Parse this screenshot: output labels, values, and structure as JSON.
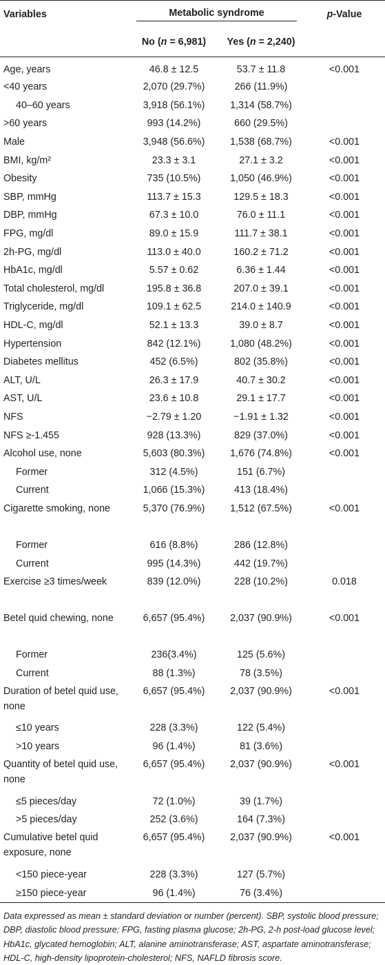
{
  "header": {
    "variables": "Variables",
    "group": "Metabolic syndrome",
    "pvalue": "p",
    "pvalue_suffix": "-Value",
    "no_label": "No (",
    "no_n": "n",
    "no_count": " = 6,981)",
    "yes_label": "Yes (",
    "yes_n": "n",
    "yes_count": " = 2,240)"
  },
  "rows": [
    {
      "label": "Age, years",
      "no": "46.8 ± 12.5",
      "yes": "53.7 ± 11.8",
      "p": "<0.001",
      "indent": false
    },
    {
      "label": "<40 years",
      "no": "2,070 (29.7%)",
      "yes": "266 (11.9%)",
      "p": "",
      "indent": false
    },
    {
      "label": "40–60 years",
      "no": "3,918 (56.1%)",
      "yes": "1,314 (58.7%)",
      "p": "",
      "indent": true
    },
    {
      "label": ">60 years",
      "no": "993 (14.2%)",
      "yes": "660 (29.5%)",
      "p": "",
      "indent": false
    },
    {
      "label": "Male",
      "no": "3,948 (56.6%)",
      "yes": "1,538 (68.7%)",
      "p": "<0.001",
      "indent": false
    },
    {
      "label": "BMI, kg/m²",
      "no": "23.3 ± 3.1",
      "yes": "27.1 ± 3.2",
      "p": "<0.001",
      "indent": false
    },
    {
      "label": "Obesity",
      "no": "735 (10.5%)",
      "yes": "1,050 (46.9%)",
      "p": "<0.001",
      "indent": false
    },
    {
      "label": "SBP, mmHg",
      "no": "113.7 ± 15.3",
      "yes": "129.5 ± 18.3",
      "p": "<0.001",
      "indent": false
    },
    {
      "label": "DBP, mmHg",
      "no": "67.3 ± 10.0",
      "yes": "76.0 ± 11.1",
      "p": "<0.001",
      "indent": false
    },
    {
      "label": "FPG, mg/dl",
      "no": "89.0 ± 15.9",
      "yes": "111.7 ± 38.1",
      "p": "<0.001",
      "indent": false
    },
    {
      "label": "2h-PG, mg/dl",
      "no": "113.0 ± 40.0",
      "yes": "160.2 ± 71.2",
      "p": "<0.001",
      "indent": false
    },
    {
      "label": "HbA1c, mg/dl",
      "no": "5.57 ± 0.62",
      "yes": "6.36 ± 1.44",
      "p": "<0.001",
      "indent": false
    },
    {
      "label": "Total cholesterol, mg/dl",
      "no": "195.8 ± 36.8",
      "yes": "207.0 ± 39.1",
      "p": "<0.001",
      "indent": false
    },
    {
      "label": "Triglyceride, mg/dl",
      "no": "109.1 ± 62.5",
      "yes": "214.0 ± 140.9",
      "p": "<0.001",
      "indent": false
    },
    {
      "label": "HDL-C, mg/dl",
      "no": "52.1 ± 13.3",
      "yes": "39.0 ± 8.7",
      "p": "<0.001",
      "indent": false
    },
    {
      "label": "Hypertension",
      "no": "842 (12.1%)",
      "yes": "1,080 (48.2%)",
      "p": "<0.001",
      "indent": false
    },
    {
      "label": "Diabetes mellitus",
      "no": "452 (6.5%)",
      "yes": "802 (35.8%)",
      "p": "<0.001",
      "indent": false
    },
    {
      "label": "ALT, U/L",
      "no": "26.3 ± 17.9",
      "yes": "40.7 ± 30.2",
      "p": "<0.001",
      "indent": false
    },
    {
      "label": "AST, U/L",
      "no": "23.6 ± 10.8",
      "yes": "29.1 ± 17.7",
      "p": "<0.001",
      "indent": false
    },
    {
      "label": "NFS",
      "no": "−2.79 ± 1.20",
      "yes": "−1.91 ± 1.32",
      "p": "<0.001",
      "indent": false
    },
    {
      "label": "NFS ≥-1.455",
      "no": "928 (13.3%)",
      "yes": "829 (37.0%)",
      "p": "<0.001",
      "indent": false
    },
    {
      "label": "Alcohol use, none",
      "no": "5,603 (80.3%)",
      "yes": "1,676 (74.8%)",
      "p": "<0.001",
      "indent": false
    },
    {
      "label": "Former",
      "no": "312 (4.5%)",
      "yes": "151 (6.7%)",
      "p": "",
      "indent": true
    },
    {
      "label": "Current",
      "no": "1,066 (15.3%)",
      "yes": "413 (18.4%)",
      "p": "",
      "indent": true
    },
    {
      "label": "Cigarette smoking, none",
      "no": "5,370 (76.9%)",
      "yes": "1,512 (67.5%)",
      "p": "<0.001",
      "indent": false,
      "tall": true
    },
    {
      "label": "Former",
      "no": "616 (8.8%)",
      "yes": "286 (12.8%)",
      "p": "",
      "indent": true
    },
    {
      "label": "Current",
      "no": "995 (14.3%)",
      "yes": "442 (19.7%)",
      "p": "",
      "indent": true
    },
    {
      "label": "Exercise ≥3 times/week",
      "no": "839 (12.0%)",
      "yes": "228 (10.2%)",
      "p": "0.018",
      "indent": false,
      "tall": true
    },
    {
      "label": "Betel quid chewing, none",
      "no": "6,657 (95.4%)",
      "yes": "2,037 (90.9%)",
      "p": "<0.001",
      "indent": false,
      "tall": true
    },
    {
      "label": "Former",
      "no": "236(3.4%)",
      "yes": "125 (5.6%)",
      "p": "",
      "indent": true
    },
    {
      "label": "Current",
      "no": "88 (1.3%)",
      "yes": "78 (3.5%)",
      "p": "",
      "indent": true
    },
    {
      "label": "Duration of betel quid use, none",
      "no": "6,657 (95.4%)",
      "yes": "2,037 (90.9%)",
      "p": "<0.001",
      "indent": false,
      "tall": true
    },
    {
      "label": "≤10 years",
      "no": "228 (3.3%)",
      "yes": "122 (5.4%)",
      "p": "",
      "indent": true
    },
    {
      "label": ">10 years",
      "no": "96 (1.4%)",
      "yes": "81 (3.6%)",
      "p": "",
      "indent": true
    },
    {
      "label": "Quantity of betel quid use, none",
      "no": "6,657 (95.4%)",
      "yes": "2,037 (90.9%)",
      "p": "<0.001",
      "indent": false,
      "tall": true
    },
    {
      "label": "≤5 pieces/day",
      "no": "72 (1.0%)",
      "yes": "39 (1.7%)",
      "p": "",
      "indent": true
    },
    {
      "label": ">5 pieces/day",
      "no": "252 (3.6%)",
      "yes": "164 (7.3%)",
      "p": "",
      "indent": true
    },
    {
      "label": "Cumulative betel quid exposure, none",
      "no": "6,657 (95.4%)",
      "yes": "2,037 (90.9%)",
      "p": "<0.001",
      "indent": false,
      "tall": true
    },
    {
      "label": "<150 piece-year",
      "no": "228 (3.3%)",
      "yes": "127 (5.7%)",
      "p": "",
      "indent": true
    },
    {
      "label": "≥150 piece-year",
      "no": "96 (1.4%)",
      "yes": "76 (3.4%)",
      "p": "",
      "indent": true
    }
  ],
  "footnote": "Data expressed as mean ± standard deviation or number (percent). SBP, systolic blood pressure; DBP, diastolic blood pressure; FPG, fasting plasma glucose; 2h-PG, 2-h post-load glucose level; HbA1c, glycated hemoglobin; ALT, alanine aminotransferase; AST, aspartate aminotransferase; HDL-C, high-density lipoprotein-cholesterol; NFS, NAFLD fibrosis score."
}
